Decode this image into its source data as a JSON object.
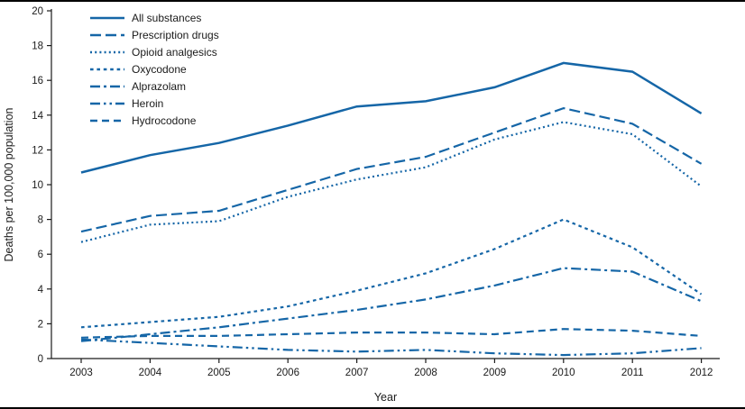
{
  "figure": {
    "background": "#ffffff",
    "border_color": "#010101"
  },
  "chart_data": {
    "type": "line",
    "title": "",
    "xlabel": "Year",
    "ylabel": "Deaths per 100,000 population",
    "x": [
      2003,
      2004,
      2005,
      2006,
      2007,
      2008,
      2009,
      2010,
      2011,
      2012
    ],
    "ylim": [
      0,
      20
    ],
    "ytick_step": 2,
    "grid": false,
    "legend_position": "top-left",
    "line_color": "#1566A7",
    "axis_color": "#1a1a1a",
    "series": [
      {
        "name": "All substances",
        "dash": "solid",
        "values": [
          10.7,
          11.7,
          12.4,
          13.4,
          14.5,
          14.8,
          15.6,
          17.0,
          16.5,
          14.1
        ]
      },
      {
        "name": "Prescription drugs",
        "dash": "long-dash",
        "values": [
          7.3,
          8.2,
          8.5,
          9.7,
          10.9,
          11.6,
          13.0,
          14.4,
          13.5,
          11.2
        ]
      },
      {
        "name": "Opioid analgesics",
        "dash": "dot",
        "values": [
          6.7,
          7.7,
          7.9,
          9.3,
          10.3,
          11.0,
          12.6,
          13.6,
          12.9,
          9.9
        ]
      },
      {
        "name": "Oxycodone",
        "dash": "square-dot",
        "values": [
          1.8,
          2.1,
          2.4,
          3.0,
          3.9,
          4.9,
          6.3,
          8.0,
          6.4,
          3.7
        ]
      },
      {
        "name": "Alprazolam",
        "dash": "dash-dot",
        "values": [
          1.0,
          1.4,
          1.8,
          2.3,
          2.8,
          3.4,
          4.2,
          5.2,
          5.0,
          3.3
        ]
      },
      {
        "name": "Heroin",
        "dash": "dash-dot-dot",
        "values": [
          1.1,
          0.9,
          0.7,
          0.5,
          0.4,
          0.5,
          0.3,
          0.2,
          0.3,
          0.6
        ]
      },
      {
        "name": "Hydrocodone",
        "dash": "dash",
        "values": [
          1.2,
          1.3,
          1.3,
          1.4,
          1.5,
          1.5,
          1.4,
          1.7,
          1.6,
          1.3
        ]
      }
    ]
  }
}
